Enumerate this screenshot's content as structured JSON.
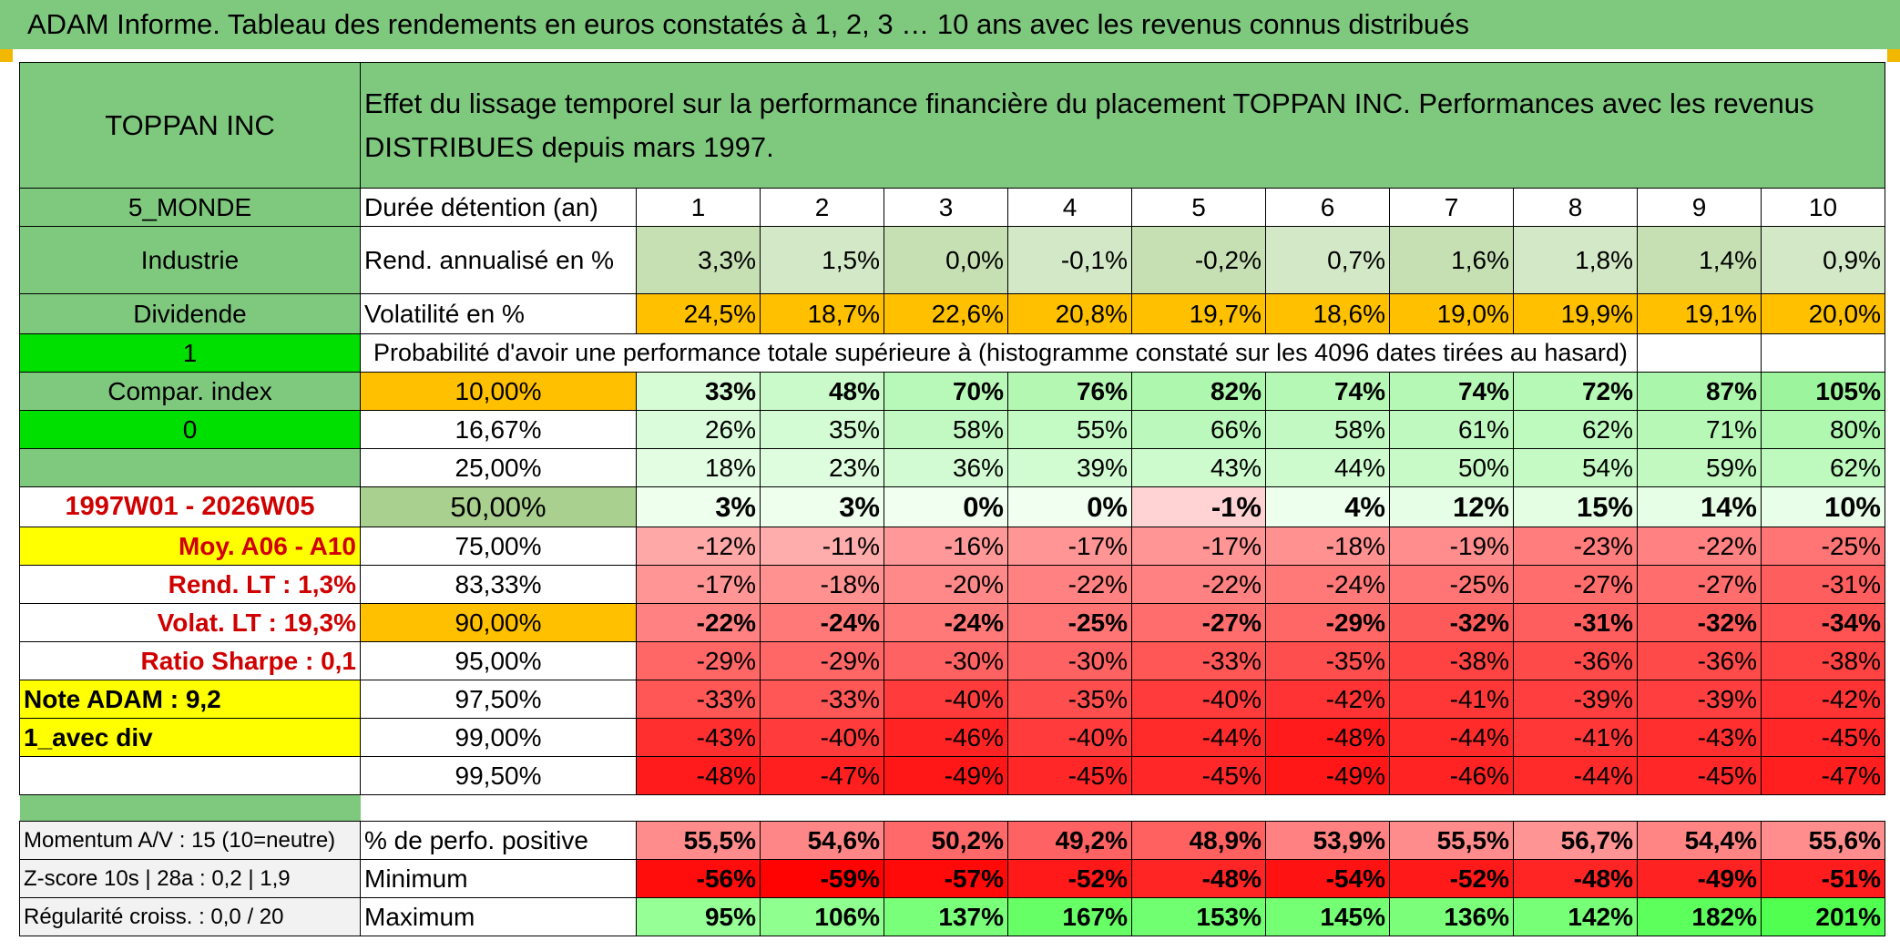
{
  "title": "ADAM Informe. Tableau des rendements en euros constatés à 1, 2, 3 … 10 ans avec les revenus connus distribués",
  "company": "TOPPAN INC",
  "description": "Effet du lissage temporel sur la performance financière du placement TOPPAN INC. Performances avec les revenus DISTRIBUES depuis mars 1997.",
  "left_labels": {
    "region": "5_MONDE",
    "sector": "Industrie",
    "div_type": "Dividende",
    "flag1": "1",
    "compar": "Compar. index",
    "flag0": "0",
    "period": "1997W01 - 2026W05",
    "moy": "Moy. A06 - A10",
    "rend_lt": "Rend. LT :   1,3%",
    "volat_lt": "Volat. LT :   19,3%",
    "sharpe": "Ratio Sharpe :    0,1",
    "note": "Note ADAM : 9,2",
    "avec_div": "1_avec div"
  },
  "duration_label": "Durée détention (an)",
  "years": [
    "1",
    "2",
    "3",
    "4",
    "5",
    "6",
    "7",
    "8",
    "9",
    "10"
  ],
  "rend_label": "Rend. annualisé en %",
  "rend": [
    "3,3%",
    "1,5%",
    "0,0%",
    "-0,1%",
    "-0,2%",
    "0,7%",
    "1,6%",
    "1,8%",
    "1,4%",
    "0,9%"
  ],
  "vol_label": "Volatilité en %",
  "vol": [
    "24,5%",
    "18,7%",
    "22,6%",
    "20,8%",
    "19,7%",
    "18,6%",
    "19,0%",
    "19,9%",
    "19,1%",
    "20,0%"
  ],
  "prob_label": "Probabilité d'avoir une performance totale supérieure à (histogramme constaté sur les 4096 dates tirées au hasard)",
  "quantiles": [
    {
      "label": "10,00%",
      "values": [
        "33%",
        "48%",
        "70%",
        "76%",
        "82%",
        "74%",
        "74%",
        "72%",
        "87%",
        "105%"
      ]
    },
    {
      "label": "16,67%",
      "values": [
        "26%",
        "35%",
        "58%",
        "55%",
        "66%",
        "58%",
        "61%",
        "62%",
        "71%",
        "80%"
      ]
    },
    {
      "label": "25,00%",
      "values": [
        "18%",
        "23%",
        "36%",
        "39%",
        "43%",
        "44%",
        "50%",
        "54%",
        "59%",
        "62%"
      ]
    },
    {
      "label": "50,00%",
      "values": [
        "3%",
        "3%",
        "0%",
        "0%",
        "-1%",
        "4%",
        "12%",
        "15%",
        "14%",
        "10%"
      ]
    },
    {
      "label": "75,00%",
      "values": [
        "-12%",
        "-11%",
        "-16%",
        "-17%",
        "-17%",
        "-18%",
        "-19%",
        "-23%",
        "-22%",
        "-25%"
      ]
    },
    {
      "label": "83,33%",
      "values": [
        "-17%",
        "-18%",
        "-20%",
        "-22%",
        "-22%",
        "-24%",
        "-25%",
        "-27%",
        "-27%",
        "-31%"
      ]
    },
    {
      "label": "90,00%",
      "values": [
        "-22%",
        "-24%",
        "-24%",
        "-25%",
        "-27%",
        "-29%",
        "-32%",
        "-31%",
        "-32%",
        "-34%"
      ]
    },
    {
      "label": "95,00%",
      "values": [
        "-29%",
        "-29%",
        "-30%",
        "-30%",
        "-33%",
        "-35%",
        "-38%",
        "-36%",
        "-36%",
        "-38%"
      ]
    },
    {
      "label": "97,50%",
      "values": [
        "-33%",
        "-33%",
        "-40%",
        "-35%",
        "-40%",
        "-42%",
        "-41%",
        "-39%",
        "-39%",
        "-42%"
      ]
    },
    {
      "label": "99,00%",
      "values": [
        "-43%",
        "-40%",
        "-46%",
        "-40%",
        "-44%",
        "-48%",
        "-44%",
        "-41%",
        "-43%",
        "-45%"
      ]
    },
    {
      "label": "99,50%",
      "values": [
        "-48%",
        "-47%",
        "-49%",
        "-45%",
        "-45%",
        "-49%",
        "-46%",
        "-44%",
        "-45%",
        "-47%"
      ]
    }
  ],
  "bottom": [
    {
      "left": "Momentum A/V : 15 (10=neutre)",
      "label": "% de perfo. positive",
      "values": [
        "55,5%",
        "54,6%",
        "50,2%",
        "49,2%",
        "48,9%",
        "53,9%",
        "55,5%",
        "56,7%",
        "54,4%",
        "55,6%"
      ]
    },
    {
      "left": "Z-score 10s | 28a : 0,2 | 1,9",
      "label": "Minimum",
      "values": [
        "-56%",
        "-59%",
        "-57%",
        "-52%",
        "-48%",
        "-54%",
        "-52%",
        "-48%",
        "-49%",
        "-51%"
      ]
    },
    {
      "left": "Régularité croiss. : 0,0 / 20",
      "label": "Maximum",
      "values": [
        "95%",
        "106%",
        "137%",
        "167%",
        "153%",
        "145%",
        "136%",
        "142%",
        "182%",
        "201%"
      ]
    }
  ],
  "colors": {
    "header_green": "#7fc97f",
    "bright_green": "#00e000",
    "yellow": "#ffff00",
    "orange": "#ffc000",
    "light_green": "#c6e0b4"
  }
}
